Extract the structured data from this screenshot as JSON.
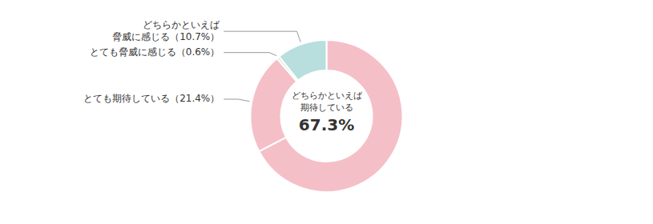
{
  "chart_data": {
    "type": "donut",
    "values": [
      67.3,
      21.4,
      0.6,
      10.7
    ],
    "colors": [
      "#f5bfc8",
      "#f5bfc8",
      "#daecc8",
      "#b8dede"
    ],
    "categories": [
      [
        "どちらかといえば",
        "期待している"
      ],
      [
        "とても期待している（21.4%）"
      ],
      [
        "とても脅威に感じる（0.6%）"
      ],
      [
        "どちらかといえば",
        "脅威に感じる（10.7%）"
      ]
    ],
    "annotations": [
      "67.3%"
    ]
  }
}
